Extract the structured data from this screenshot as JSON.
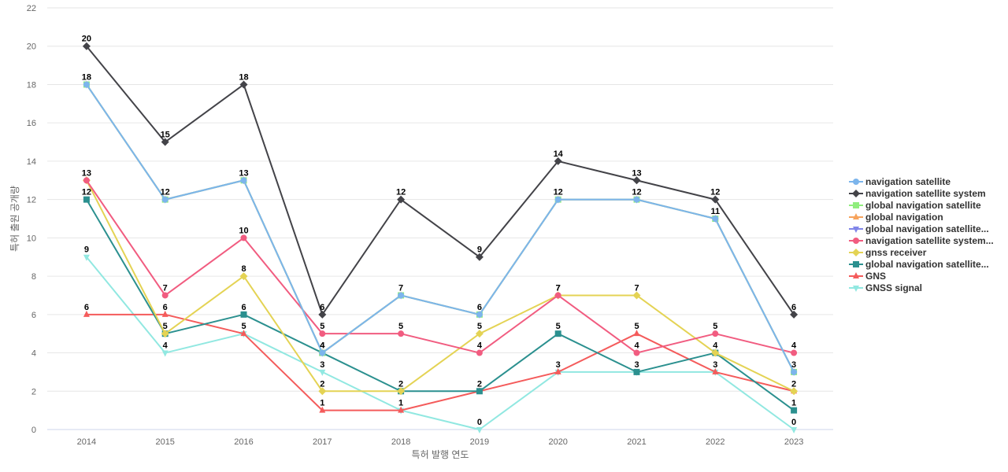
{
  "chart_data": {
    "type": "line",
    "title": "",
    "xlabel": "특허 발행 연도",
    "ylabel": "특허 출원 공개량",
    "categories": [
      "2014",
      "2015",
      "2016",
      "2017",
      "2018",
      "2019",
      "2020",
      "2021",
      "2022",
      "2023"
    ],
    "ylim": [
      0,
      22
    ],
    "yticks": [
      0,
      2,
      4,
      6,
      8,
      10,
      12,
      14,
      16,
      18,
      20,
      22
    ],
    "grid": true,
    "legend_position": "right",
    "series": [
      {
        "name": "navigation satellite",
        "color": "#7cb5ec",
        "marker": "circle",
        "values": [
          18,
          12,
          13,
          4,
          7,
          6,
          12,
          12,
          11,
          3
        ]
      },
      {
        "name": "navigation satellite system",
        "color": "#434348",
        "marker": "diamond",
        "values": [
          20,
          15,
          18,
          6,
          12,
          9,
          14,
          13,
          12,
          6
        ]
      },
      {
        "name": "global navigation satellite",
        "color": "#90ed7d",
        "marker": "square",
        "values": [
          18,
          12,
          13,
          4,
          7,
          6,
          12,
          12,
          11,
          3
        ]
      },
      {
        "name": "global navigation",
        "color": "#f7a35c",
        "marker": "triangle",
        "values": [
          18,
          12,
          13,
          4,
          7,
          6,
          12,
          12,
          11,
          3
        ]
      },
      {
        "name": "global navigation satellite...",
        "color": "#8085e9",
        "marker": "triangle-down",
        "values": [
          18,
          12,
          13,
          4,
          7,
          6,
          12,
          12,
          11,
          3
        ]
      },
      {
        "name": "navigation satellite system...",
        "color": "#f15c80",
        "marker": "circle",
        "values": [
          13,
          7,
          10,
          5,
          5,
          4,
          7,
          4,
          5,
          4
        ]
      },
      {
        "name": "gnss receiver",
        "color": "#e4d354",
        "marker": "diamond",
        "values": [
          13,
          5,
          8,
          2,
          2,
          5,
          7,
          7,
          4,
          2
        ]
      },
      {
        "name": "global navigation satellite...",
        "color": "#2b908f",
        "marker": "square",
        "values": [
          12,
          5,
          6,
          4,
          2,
          2,
          5,
          3,
          4,
          1
        ]
      },
      {
        "name": "GNS",
        "color": "#f45b5b",
        "marker": "triangle",
        "values": [
          6,
          6,
          5,
          1,
          1,
          2,
          3,
          5,
          3,
          2
        ]
      },
      {
        "name": "GNSS signal",
        "color": "#91e8e1",
        "marker": "triangle-down",
        "values": [
          9,
          4,
          5,
          3,
          1,
          0,
          3,
          3,
          3,
          0
        ]
      }
    ],
    "data_labels": [
      {
        "series": 1,
        "values": [
          20,
          15,
          18,
          6,
          12,
          9,
          14,
          13,
          12,
          6
        ]
      },
      {
        "series": 4,
        "values": [
          18,
          12,
          13,
          4,
          7,
          6,
          12,
          12,
          11,
          3
        ]
      },
      {
        "series": 5,
        "values": [
          13,
          7,
          10,
          5,
          5,
          4,
          7,
          4,
          5,
          4
        ]
      },
      {
        "series": 6,
        "values": [
          null,
          null,
          8,
          2,
          null,
          5,
          7,
          7,
          null,
          2
        ]
      },
      {
        "series": 7,
        "values": [
          12,
          5,
          6,
          4,
          2,
          2,
          5,
          3,
          4,
          1
        ]
      },
      {
        "series": 8,
        "values": [
          6,
          6,
          null,
          1,
          1,
          null,
          3,
          5,
          3,
          null
        ]
      },
      {
        "series": 9,
        "values": [
          9,
          4,
          5,
          3,
          null,
          0,
          null,
          null,
          null,
          0
        ]
      }
    ]
  }
}
